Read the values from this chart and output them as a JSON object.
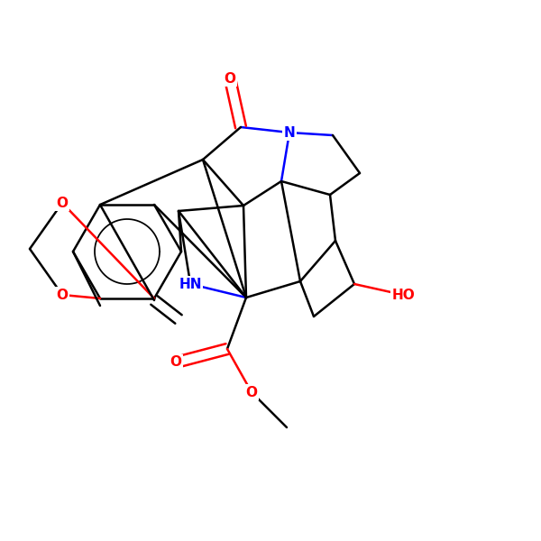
{
  "bg": "#ffffff",
  "bc": "#000000",
  "rc": "#ff0000",
  "nc": "#0000ff",
  "lw": 1.8,
  "fs": 11,
  "xlim": [
    0,
    10
  ],
  "ylim": [
    0,
    10
  ]
}
